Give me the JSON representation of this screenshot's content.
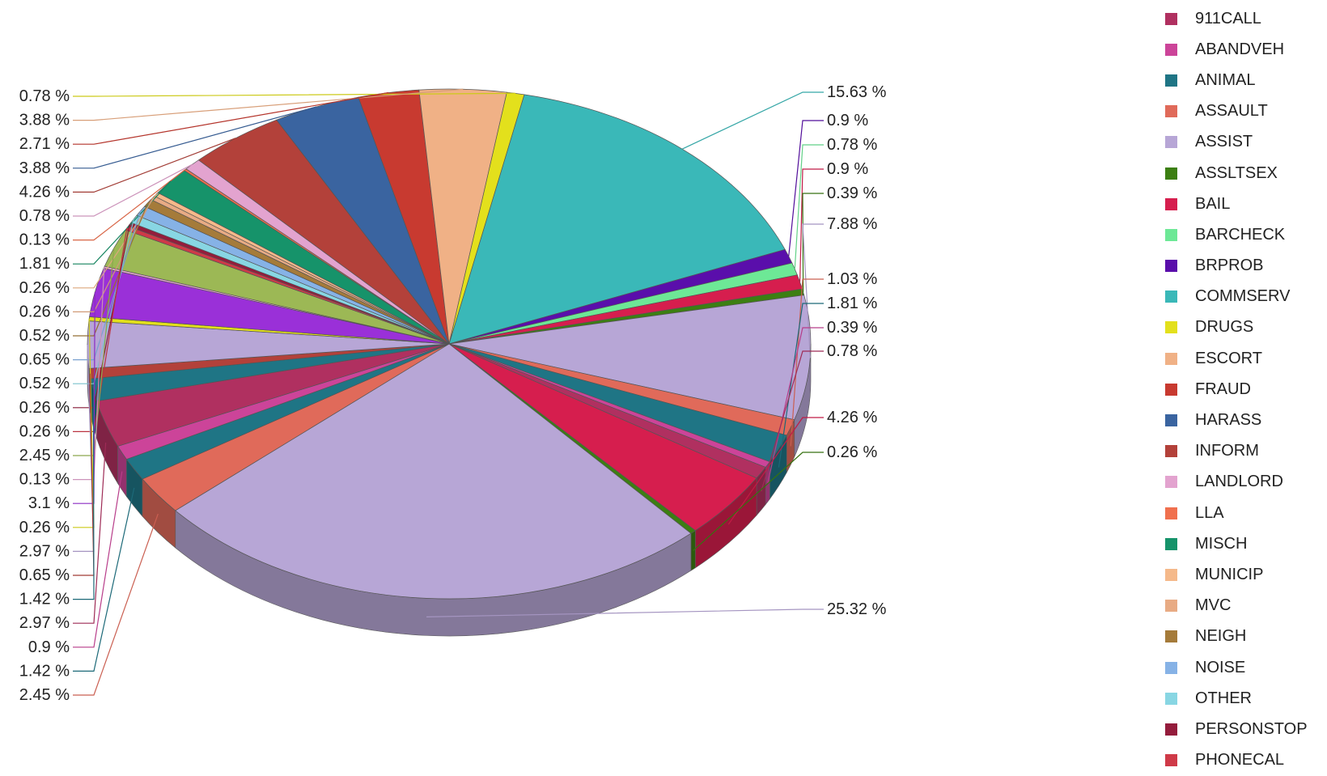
{
  "chart_data": {
    "type": "pie",
    "title": "",
    "legend_position": "right",
    "legend": [
      {
        "name": "911CALL",
        "color": "#b03060"
      },
      {
        "name": "ABANDVEH",
        "color": "#cc4499"
      },
      {
        "name": "ANIMAL",
        "color": "#1f7585"
      },
      {
        "name": "ASSAULT",
        "color": "#e06a5a"
      },
      {
        "name": "ASSIST",
        "color": "#b7a6d6"
      },
      {
        "name": "ASSLTSEX",
        "color": "#3c7f12"
      },
      {
        "name": "BAIL",
        "color": "#d61e4e"
      },
      {
        "name": "BARCHECK",
        "color": "#6de896"
      },
      {
        "name": "BRPROB",
        "color": "#5a0eab"
      },
      {
        "name": "COMMSERV",
        "color": "#3ab8b8"
      },
      {
        "name": "DRUGS",
        "color": "#e3e01c"
      },
      {
        "name": "ESCORT",
        "color": "#f0b186"
      },
      {
        "name": "FRAUD",
        "color": "#c83a30"
      },
      {
        "name": "HARASS",
        "color": "#3a64a0"
      },
      {
        "name": "INFORM",
        "color": "#b3413a"
      },
      {
        "name": "LANDLORD",
        "color": "#e3a3cf"
      },
      {
        "name": "LLA",
        "color": "#f0704e"
      },
      {
        "name": "MISCH",
        "color": "#16936a"
      },
      {
        "name": "MUNICIP",
        "color": "#f5b98a"
      },
      {
        "name": "MVC",
        "color": "#e8ab84"
      },
      {
        "name": "NEIGH",
        "color": "#a57b3a"
      },
      {
        "name": "NOISE",
        "color": "#86b2e6"
      },
      {
        "name": "OTHER",
        "color": "#88d6e3"
      },
      {
        "name": "PERSONSTOP",
        "color": "#941c3c"
      },
      {
        "name": "PHONECAL",
        "color": "#cf3a48"
      }
    ],
    "slices": [
      {
        "value": 15.63,
        "label": "15.63 %",
        "color": "#3ab8b8",
        "side": "right"
      },
      {
        "value": 0.9,
        "label": "0.9 %",
        "color": "#5a0eab",
        "side": "right"
      },
      {
        "value": 0.78,
        "label": "0.78 %",
        "color": "#6de896",
        "side": "right"
      },
      {
        "value": 0.9,
        "label": "0.9 %",
        "color": "#d61e4e",
        "side": "right"
      },
      {
        "value": 0.39,
        "label": "0.39 %",
        "color": "#3c7f12",
        "side": "right"
      },
      {
        "value": 7.88,
        "label": "7.88 %",
        "color": "#b7a6d6",
        "side": "right"
      },
      {
        "value": 1.03,
        "label": "1.03 %",
        "color": "#e06a5a",
        "side": "right"
      },
      {
        "value": 1.81,
        "label": "1.81 %",
        "color": "#1f7585",
        "side": "right"
      },
      {
        "value": 0.39,
        "label": "0.39 %",
        "color": "#cc4499",
        "side": "right"
      },
      {
        "value": 0.78,
        "label": "0.78 %",
        "color": "#b03060",
        "side": "right"
      },
      {
        "value": 4.26,
        "label": "4.26 %",
        "color": "#d61e4e",
        "side": "right"
      },
      {
        "value": 0.26,
        "label": "0.26 %",
        "color": "#3c7f12",
        "side": "right"
      },
      {
        "value": 25.32,
        "label": "25.32 %",
        "color": "#b7a6d6",
        "side": "right"
      },
      {
        "value": 2.45,
        "label": "2.45 %",
        "color": "#e06a5a",
        "side": "left"
      },
      {
        "value": 1.42,
        "label": "1.42 %",
        "color": "#1f7585",
        "side": "left"
      },
      {
        "value": 0.9,
        "label": "0.9 %",
        "color": "#cc4499",
        "side": "left"
      },
      {
        "value": 2.97,
        "label": "2.97 %",
        "color": "#b03060",
        "side": "left"
      },
      {
        "value": 1.42,
        "label": "1.42 %",
        "color": "#1f7585",
        "side": "left"
      },
      {
        "value": 0.65,
        "label": "0.65 %",
        "color": "#b3413a",
        "side": "left"
      },
      {
        "value": 2.97,
        "label": "2.97 %",
        "color": "#b7a6d6",
        "side": "left"
      },
      {
        "value": 0.26,
        "label": "0.26 %",
        "color": "#e3e01c",
        "side": "left"
      },
      {
        "value": 3.1,
        "label": "3.1 %",
        "color": "#9a30d8",
        "side": "left"
      },
      {
        "value": 0.13,
        "label": "0.13 %",
        "color": "#e3a3cf",
        "side": "left"
      },
      {
        "value": 2.45,
        "label": "2.45 %",
        "color": "#9cb855",
        "side": "left"
      },
      {
        "value": 0.26,
        "label": "0.26 %",
        "color": "#cf3a48",
        "side": "left"
      },
      {
        "value": 0.26,
        "label": "0.26 %",
        "color": "#941c3c",
        "side": "left"
      },
      {
        "value": 0.52,
        "label": "0.52 %",
        "color": "#88d6e3",
        "side": "left"
      },
      {
        "value": 0.65,
        "label": "0.65 %",
        "color": "#86b2e6",
        "side": "left"
      },
      {
        "value": 0.52,
        "label": "0.52 %",
        "color": "#a57b3a",
        "side": "left"
      },
      {
        "value": 0.26,
        "label": "0.26 %",
        "color": "#e8ab84",
        "side": "left"
      },
      {
        "value": 0.26,
        "label": "0.26 %",
        "color": "#f5b98a",
        "side": "left"
      },
      {
        "value": 1.81,
        "label": "1.81 %",
        "color": "#16936a",
        "side": "left"
      },
      {
        "value": 0.13,
        "label": "0.13 %",
        "color": "#f0704e",
        "side": "left"
      },
      {
        "value": 0.78,
        "label": "0.78 %",
        "color": "#e3a3cf",
        "side": "left"
      },
      {
        "value": 4.26,
        "label": "4.26 %",
        "color": "#b3413a",
        "side": "left"
      },
      {
        "value": 3.88,
        "label": "3.88 %",
        "color": "#3a64a0",
        "side": "left"
      },
      {
        "value": 2.71,
        "label": "2.71 %",
        "color": "#c83a30",
        "side": "left"
      },
      {
        "value": 3.88,
        "label": "3.88 %",
        "color": "#f0b186",
        "side": "left"
      },
      {
        "value": 0.78,
        "label": "0.78 %",
        "color": "#e3e01c",
        "side": "left"
      }
    ]
  }
}
